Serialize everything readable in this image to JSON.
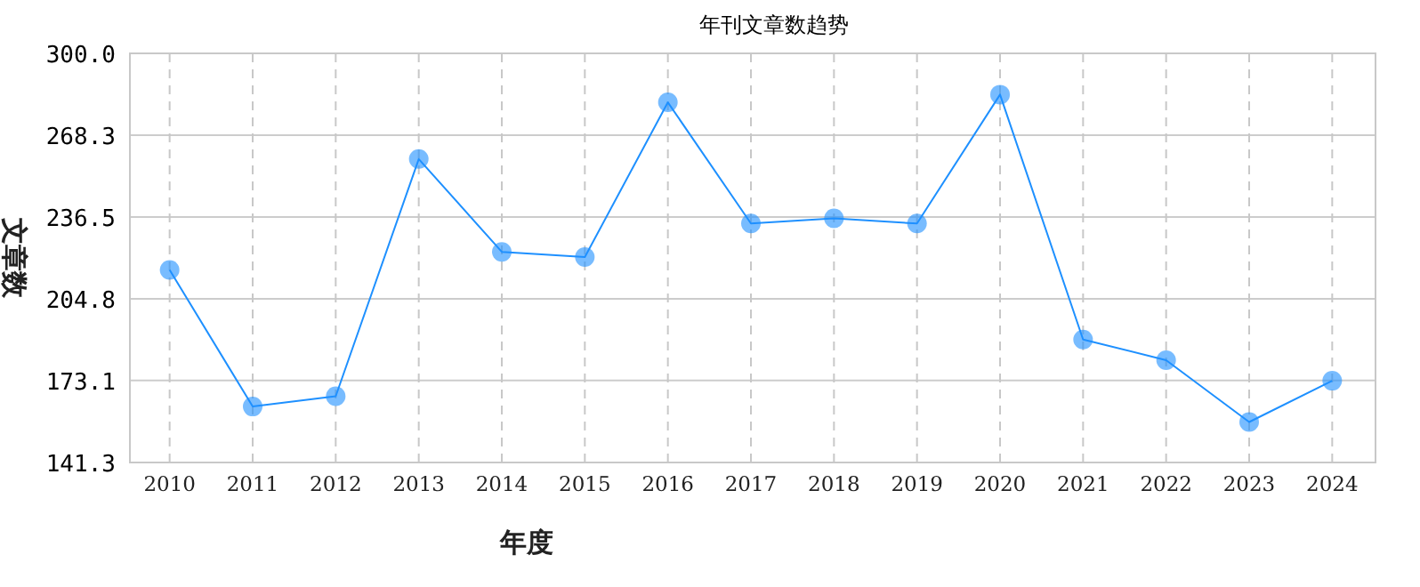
{
  "chart_data": {
    "type": "line",
    "title": "年刊文章数趋势",
    "xlabel": "年度",
    "ylabel": "文章数",
    "categories": [
      "2010",
      "2011",
      "2012",
      "2013",
      "2014",
      "2015",
      "2016",
      "2017",
      "2018",
      "2019",
      "2020",
      "2021",
      "2022",
      "2023",
      "2024"
    ],
    "series": [
      {
        "color": "#1e90ff",
        "values": [
          216,
          163,
          167,
          259,
          223,
          221,
          281,
          234,
          236,
          234,
          284,
          189,
          181,
          157,
          173
        ]
      }
    ],
    "ylim": [
      141.3,
      300.0
    ],
    "yticks": [
      {
        "value": 141.3,
        "label": "141.3"
      },
      {
        "value": 173.1,
        "label": "173.1"
      },
      {
        "value": 204.8,
        "label": "204.8"
      },
      {
        "value": 236.5,
        "label": "236.5"
      },
      {
        "value": 268.3,
        "label": "268.3"
      },
      {
        "value": 300.0,
        "label": "300.0"
      }
    ],
    "grid": true,
    "marker": "circle",
    "line_style": "solid"
  }
}
